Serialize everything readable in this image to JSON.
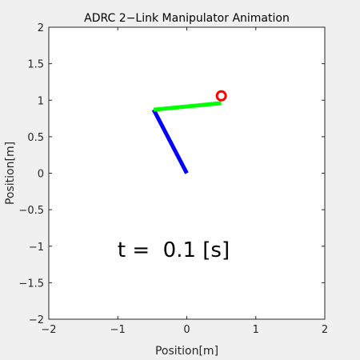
{
  "chart_data": {
    "type": "line",
    "title": "ADRC 2−Link Manipulator Animation",
    "xlabel": "Position[m]",
    "ylabel": "Position[m]",
    "xlim": [
      -2,
      2
    ],
    "ylim": [
      -2,
      2
    ],
    "xticks": [
      -2,
      -1,
      0,
      1,
      2
    ],
    "yticks": [
      -2,
      -1.5,
      -1,
      -0.5,
      0,
      0.5,
      1,
      1.5,
      2
    ],
    "xtick_labels": [
      "−2",
      "−1",
      "0",
      "1",
      "2"
    ],
    "ytick_labels": [
      "−2",
      "−1.5",
      "−1",
      "−0.5",
      "0",
      "0.5",
      "1",
      "1.5",
      "2"
    ],
    "grid": false,
    "annotation": "t =  0.1 [s]",
    "series": [
      {
        "x": [
          0,
          -0.48
        ],
        "y": [
          0,
          0.87
        ],
        "color": "#0000ff"
      },
      {
        "x": [
          -0.48,
          0.5
        ],
        "y": [
          0.87,
          0.96
        ],
        "color": "#00ff00"
      }
    ],
    "target": {
      "x": 0.5,
      "y": 1.06,
      "color": "#ff0000"
    }
  }
}
